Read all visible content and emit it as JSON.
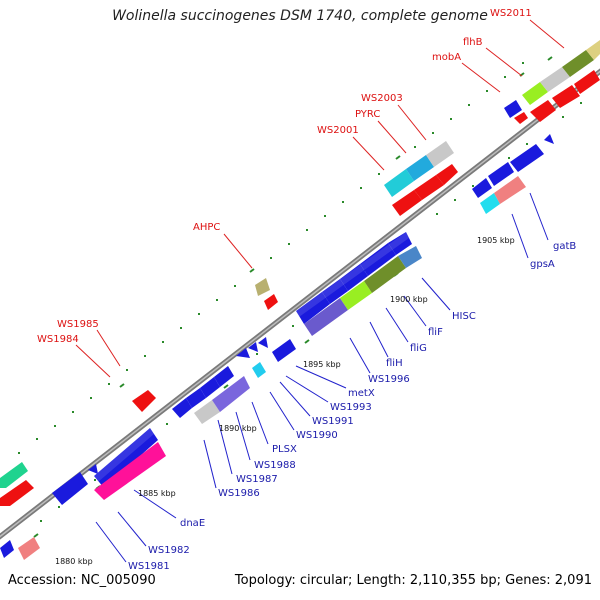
{
  "title": "Wolinella succinogenes DSM 1740, complete genome",
  "footer": {
    "accession": "Accession: NC_005090",
    "summary": "Topology: circular; Length: 2,110,355 bp; Genes: 2,091"
  },
  "colors": {
    "backbone": "#8a8a8a",
    "red_label": "#dd1111",
    "blue_label": "#1a1aaa",
    "tick": "#2a8a2a",
    "bp_label": "#111111"
  },
  "bp_labels": [
    "1880 kbp",
    "1885 kbp",
    "1890 kbp",
    "1895 kbp",
    "1900 kbp",
    "1905 kbp"
  ],
  "upper_labels": [
    "WS2011",
    "flhB",
    "mobA",
    "WS2003",
    "PYRC",
    "WS2001",
    "AHPC",
    "WS1985",
    "WS1984"
  ],
  "lower_labels": [
    "gatB",
    "gpsA",
    "HISC",
    "fliF",
    "fliG",
    "fliH",
    "WS1996",
    "metX",
    "WS1993",
    "WS1991",
    "WS1990",
    "PLSX",
    "WS1988",
    "WS1987",
    "WS1986",
    "dnaE",
    "WS1982",
    "WS1981"
  ]
}
